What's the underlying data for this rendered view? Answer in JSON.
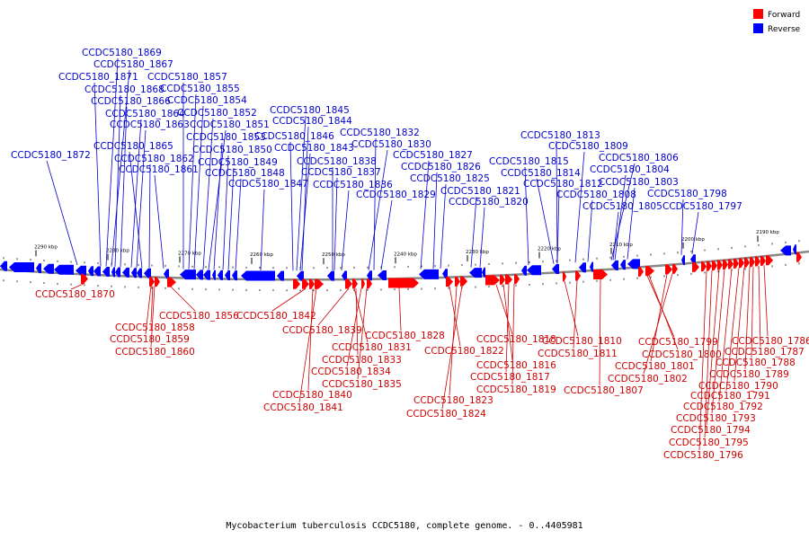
{
  "caption": "Mycobacterium tuberculosis CCDC5180, complete genome. - 0..4405981",
  "legend": {
    "forward": {
      "label": "Forward",
      "color": "#ff0000"
    },
    "reverse": {
      "label": "Reverse",
      "color": "#0000ff"
    }
  },
  "colors": {
    "forward_label": "#cc0000",
    "reverse_label": "#0000cc",
    "backbone": "#888888"
  },
  "scale_ticks": [
    "2290 kbp",
    "2280 kbp",
    "2270 kbp",
    "2260 kbp",
    "2250 kbp",
    "2240 kbp",
    "2230 kbp",
    "2220 kbp",
    "2210 kbp",
    "2200 kbp",
    "2190 kbp"
  ],
  "reverse_genes": [
    "CCDC5180_1869",
    "CCDC5180_1867",
    "CCDC5180_1871",
    "CCDC5180_1857",
    "CCDC5180_1868",
    "CCDC5180_1855",
    "CCDC5180_1866",
    "CCDC5180_1854",
    "CCDC5180_1864",
    "CCDC5180_1852",
    "CCDC5180_1863",
    "CCDC5180_1851",
    "CCDC5180_1853",
    "CCDC5180_1865",
    "CCDC5180_1850",
    "CCDC5180_1872",
    "CCDC5180_1862",
    "CCDC5180_1849",
    "CCDC5180_1861",
    "CCDC5180_1848",
    "CCDC5180_1847",
    "CCDC5180_1845",
    "CCDC5180_1844",
    "CCDC5180_1846",
    "CCDC5180_1843",
    "CCDC5180_1838",
    "CCDC5180_1837",
    "CCDC5180_1836",
    "CCDC5180_1832",
    "CCDC5180_1830",
    "CCDC5180_1829",
    "CCDC5180_1827",
    "CCDC5180_1826",
    "CCDC5180_1825",
    "CCDC5180_1821",
    "CCDC5180_1820",
    "CCDC5180_1813",
    "CCDC5180_1809",
    "CCDC5180_1815",
    "CCDC5180_1806",
    "CCDC5180_1814",
    "CCDC5180_1804",
    "CCDC5180_1812",
    "CCDC5180_1803",
    "CCDC5180_1808",
    "CCDC5180_1798",
    "CCDC5180_1805",
    "CCDC5180_1797"
  ],
  "forward_genes": [
    "CCDC5180_1870",
    "CCDC5180_1856",
    "CCDC5180_1842",
    "CCDC5180_1858",
    "CCDC5180_1859",
    "CCDC5180_1860",
    "CCDC5180_1839",
    "CCDC5180_1831",
    "CCDC5180_1833",
    "CCDC5180_1834",
    "CCDC5180_1835",
    "CCDC5180_1840",
    "CCDC5180_1841",
    "CCDC5180_1828",
    "CCDC5180_1818",
    "CCDC5180_1822",
    "CCDC5180_1816",
    "CCDC5180_1817",
    "CCDC5180_1819",
    "CCDC5180_1823",
    "CCDC5180_1824",
    "CCDC5180_1810",
    "CCDC5180_1811",
    "CCDC5180_1807",
    "CCDC5180_1799",
    "CCDC5180_1800",
    "CCDC5180_1801",
    "CCDC5180_1802",
    "CCDC5180_1786",
    "CCDC5180_1787",
    "CCDC5180_1788",
    "CCDC5180_1789",
    "CCDC5180_1790",
    "CCDC5180_1791",
    "CCDC5180_1792",
    "CCDC5180_1793",
    "CCDC5180_1794",
    "CCDC5180_1795",
    "CCDC5180_1796"
  ]
}
